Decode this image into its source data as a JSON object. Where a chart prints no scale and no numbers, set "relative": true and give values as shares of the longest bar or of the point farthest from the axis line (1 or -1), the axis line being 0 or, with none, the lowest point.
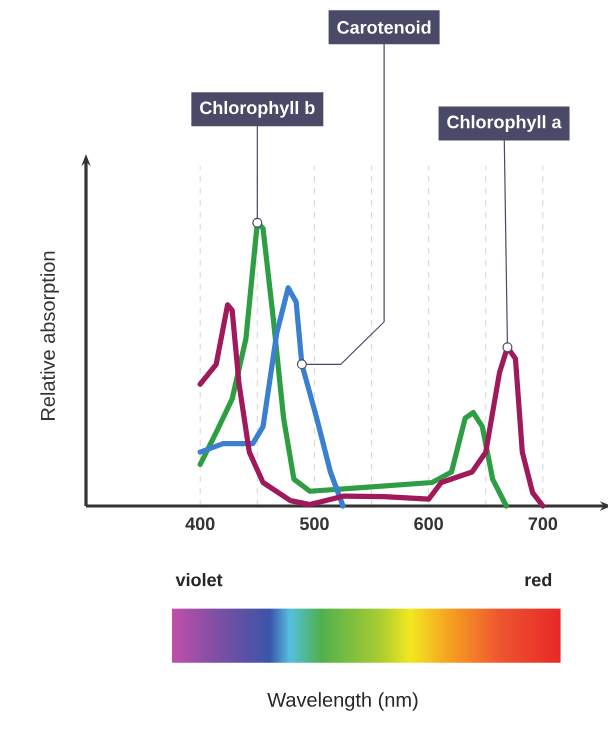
{
  "chart_data": {
    "type": "line",
    "relative": true,
    "ylabel": "Relative absorption",
    "xlim": [
      300,
      750
    ],
    "xticks": [
      400,
      {
        "value": 450,
        "label": null
      },
      500,
      {
        "value": 550,
        "label": null
      },
      600,
      {
        "value": 650,
        "label": null
      },
      700
    ],
    "grid": "x",
    "legend": false,
    "marker": "none",
    "line_style": "solid",
    "annotations": [
      "violet",
      "red",
      "Wavelength (nm)"
    ],
    "series": [
      {
        "name": "Chlorophyll b",
        "color": "#2e9e44",
        "x": [
          400,
          414,
          428,
          440,
          450,
          455,
          464,
          473,
          482,
          496,
          544,
          603,
          620,
          632,
          639,
          647,
          656,
          668
        ],
        "values": [
          0.147,
          0.26,
          0.378,
          0.59,
          1,
          0.98,
          0.66,
          0.31,
          0.095,
          0.052,
          0.066,
          0.083,
          0.12,
          0.31,
          0.33,
          0.28,
          0.095,
          0
        ]
      },
      {
        "name": "Carotenoid",
        "color": "#3a7fd0",
        "x": [
          400,
          420,
          446,
          455,
          467,
          477,
          484,
          489,
          502,
          514,
          525
        ],
        "values": [
          0.19,
          0.22,
          0.22,
          0.28,
          0.61,
          0.77,
          0.72,
          0.5,
          0.31,
          0.12,
          0
        ]
      },
      {
        "name": "Chlorophyll a",
        "color": "#a0195a",
        "x": [
          400,
          414,
          424,
          428,
          434,
          443,
          455,
          479,
          496,
          526,
          561,
          600,
          611,
          620,
          638,
          650,
          662,
          669,
          676,
          682,
          691,
          700
        ],
        "values": [
          0.43,
          0.5,
          0.71,
          0.69,
          0.43,
          0.19,
          0.083,
          0.019,
          0.005,
          0.035,
          0.033,
          0.024,
          0.083,
          0.095,
          0.12,
          0.19,
          0.47,
          0.56,
          0.52,
          0.19,
          0.047,
          0
        ]
      }
    ]
  }
}
